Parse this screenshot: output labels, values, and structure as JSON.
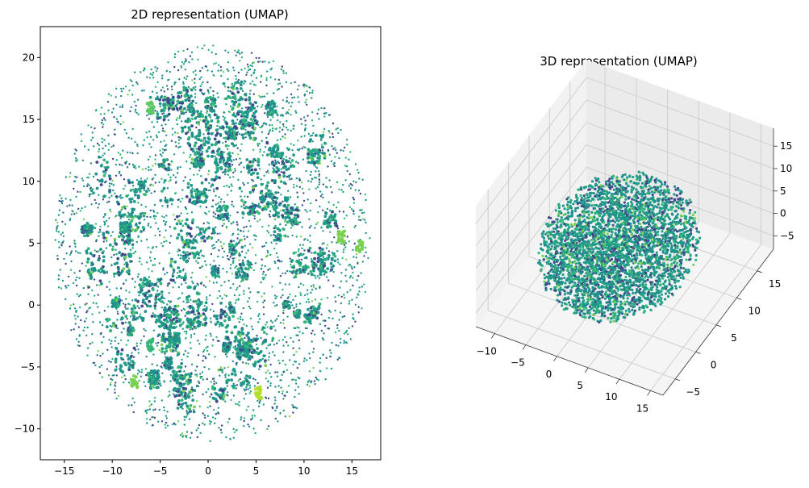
{
  "chart_data": [
    {
      "type": "scatter",
      "title": "2D representation (UMAP)",
      "xlabel": "",
      "ylabel": "",
      "xlim": [
        -17.5,
        18
      ],
      "ylim": [
        -12.5,
        22.5
      ],
      "xticks": [
        -15,
        -10,
        -5,
        0,
        5,
        10,
        15
      ],
      "yticks": [
        -10,
        -5,
        0,
        5,
        10,
        15,
        20
      ],
      "grid": false,
      "colormap": "viridis",
      "point_cloud": {
        "shape": "ellipse",
        "center": [
          0.5,
          5.0
        ],
        "x_range": [
          -16.5,
          16.5
        ],
        "y_range": [
          -11.0,
          21.0
        ],
        "approx_points": 5000
      },
      "highlight_clusters": [
        {
          "x": 15.8,
          "y": 4.8,
          "color": "#7ad151"
        },
        {
          "x": 13.9,
          "y": 5.5,
          "color": "#7ad151"
        },
        {
          "x": 5.3,
          "y": -7.1,
          "color": "#b5de2b"
        },
        {
          "x": -7.7,
          "y": -6.2,
          "color": "#7ad151"
        },
        {
          "x": -6.0,
          "y": 16.0,
          "color": "#5ec962"
        },
        {
          "x": -6.0,
          "y": -3.2,
          "color": "#35b779"
        }
      ]
    },
    {
      "type": "scatter3d",
      "title": "3D representation (UMAP)",
      "xlabel": "",
      "ylabel": "",
      "zlabel": "",
      "xticks": [
        -10,
        -5,
        0,
        5,
        10,
        15
      ],
      "yticks": [
        -5,
        0,
        5,
        10,
        15
      ],
      "zticks": [
        -5,
        0,
        5,
        10,
        15
      ],
      "grid": true,
      "colormap": "viridis"
    }
  ],
  "colors": {
    "viridis_dark": "#3e4a89",
    "viridis_mid": "#21918c",
    "viridis_teal": "#1f9e89",
    "viridis_green": "#35b779",
    "viridis_light": "#7ad151",
    "viridis_yellow": "#b5de2b"
  }
}
